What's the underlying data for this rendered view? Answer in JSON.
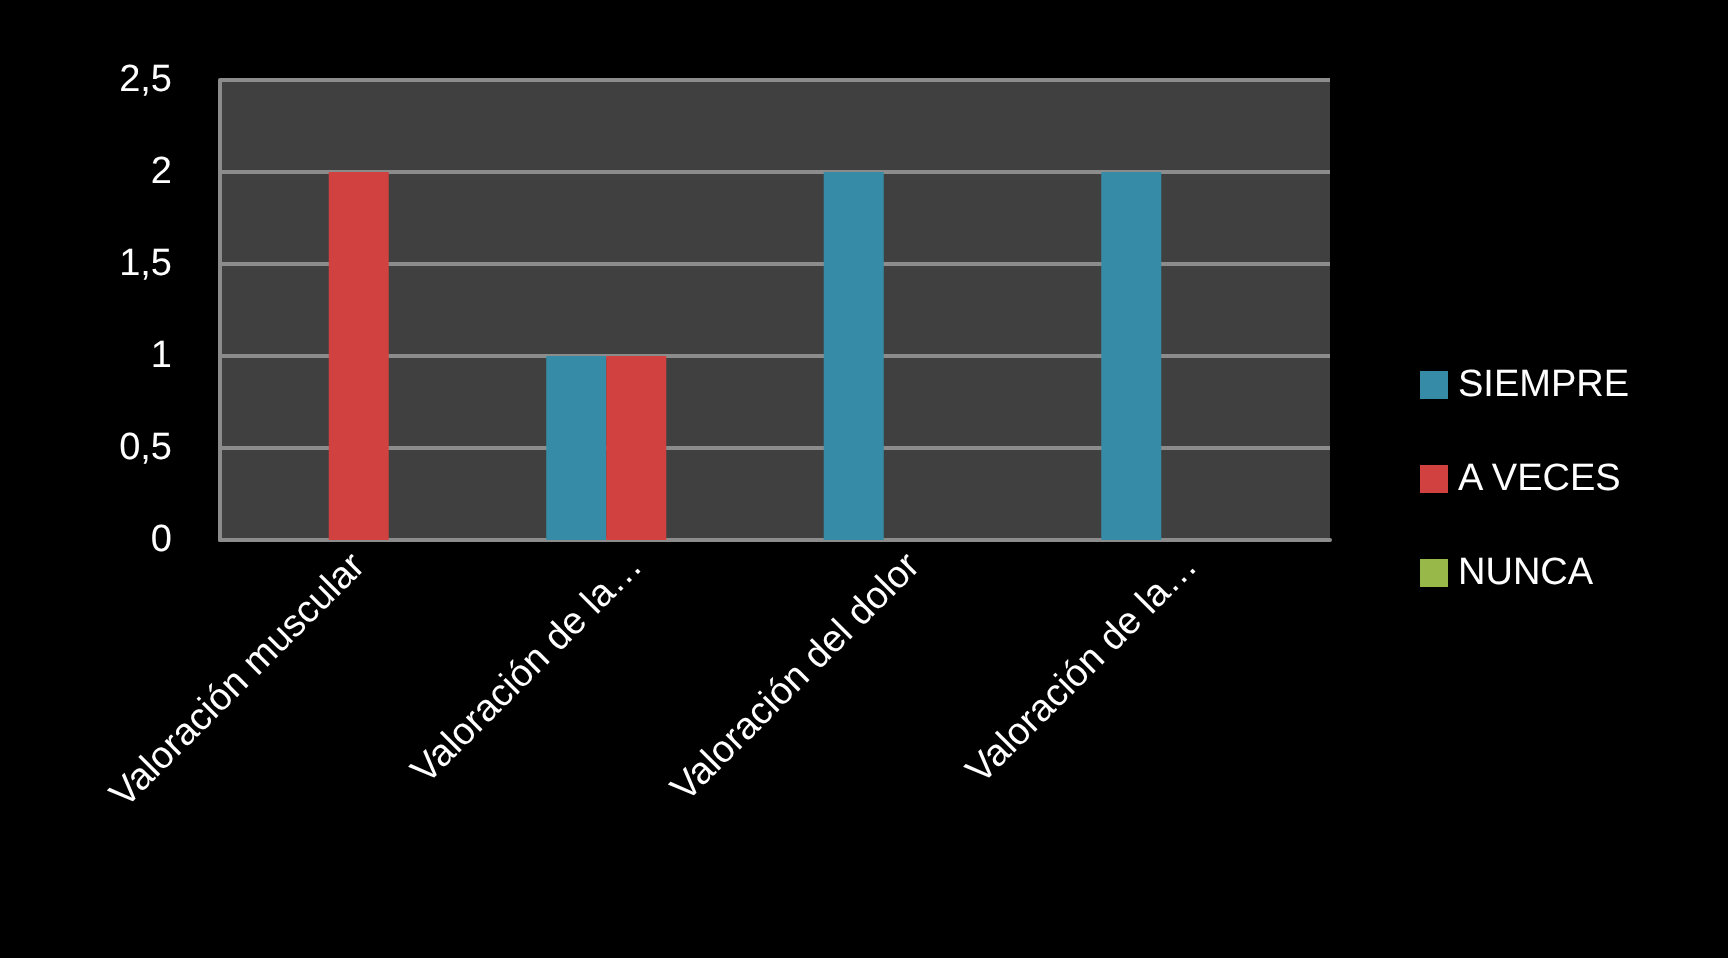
{
  "chart_data": {
    "type": "bar",
    "categories": [
      "Valoración muscular",
      "Valoración de la…",
      "Valoración del dolor",
      "Valoración de la…"
    ],
    "series": [
      {
        "name": "SIEMPRE",
        "color": "#368ca6",
        "values": [
          0,
          1,
          2,
          2
        ]
      },
      {
        "name": "A VECES",
        "color": "#d0413f",
        "values": [
          2,
          1,
          0,
          0
        ]
      },
      {
        "name": "NUNCA",
        "color": "#98b84a",
        "values": [
          0,
          0,
          0,
          0
        ]
      }
    ],
    "ylim": [
      0,
      2.5
    ],
    "yticks": [
      0,
      {
        "value": 0.5,
        "label": "0,5"
      },
      1,
      {
        "value": 1.5,
        "label": "1,5"
      },
      2,
      {
        "value": 2.5,
        "label": "2,5"
      }
    ],
    "grid": "y",
    "legend": "right"
  }
}
